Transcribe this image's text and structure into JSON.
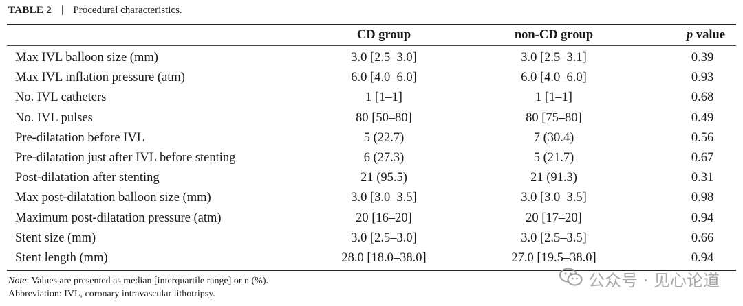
{
  "caption": {
    "label": "TABLE 2",
    "separator": "|",
    "text": "Procedural characteristics."
  },
  "headers": {
    "cd": "CD group",
    "noncd": "non-CD group",
    "p_italic": "p",
    "p_rest": " value"
  },
  "rows": [
    {
      "label": "Max IVL balloon size (mm)",
      "cd": "3.0 [2.5–3.0]",
      "noncd": "3.0 [2.5–3.1]",
      "p": "0.39"
    },
    {
      "label": "Max IVL inflation pressure (atm)",
      "cd": "6.0 [4.0–6.0]",
      "noncd": "6.0 [4.0–6.0]",
      "p": "0.93"
    },
    {
      "label": "No. IVL catheters",
      "cd": "1 [1–1]",
      "noncd": "1 [1–1]",
      "p": "0.68"
    },
    {
      "label": "No. IVL pulses",
      "cd": "80 [50–80]",
      "noncd": "80 [75–80]",
      "p": "0.49"
    },
    {
      "label": "Pre-dilatation before IVL",
      "cd": "5 (22.7)",
      "noncd": "7 (30.4)",
      "p": "0.56"
    },
    {
      "label": "Pre-dilatation just after IVL before stenting",
      "cd": "6 (27.3)",
      "noncd": "5 (21.7)",
      "p": "0.67"
    },
    {
      "label": "Post-dilatation after stenting",
      "cd": "21 (95.5)",
      "noncd": "21 (91.3)",
      "p": "0.31"
    },
    {
      "label": "Max post-dilatation balloon size (mm)",
      "cd": "3.0 [3.0–3.5]",
      "noncd": "3.0 [3.0–3.5]",
      "p": "0.98"
    },
    {
      "label": "Maximum post-dilatation pressure (atm)",
      "cd": "20 [16–20]",
      "noncd": "20 [17–20]",
      "p": "0.94"
    },
    {
      "label": "Stent size (mm)",
      "cd": "3.0 [2.5–3.0]",
      "noncd": "3.0 [2.5–3.5]",
      "p": "0.66"
    },
    {
      "label": "Stent length (mm)",
      "cd": "28.0 [18.0–38.0]",
      "noncd": "27.0 [19.5–38.0]",
      "p": "0.94"
    }
  ],
  "note": {
    "prefix": "Note",
    "text": ": Values are presented as median [interquartile range] or n (%)."
  },
  "abbreviation": "Abbreviation: IVL, coronary intravascular lithotripsy.",
  "watermark": {
    "icon": "wechat-icon",
    "text": "公众号 · 见心论道"
  }
}
